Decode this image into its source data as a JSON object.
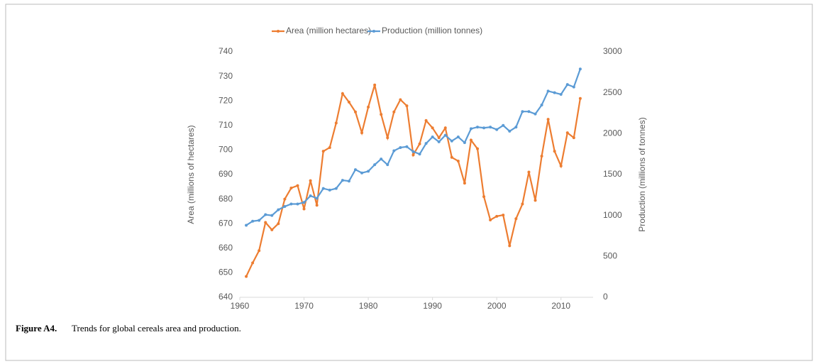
{
  "chart_data": {
    "type": "line",
    "x": [
      1961,
      1962,
      1963,
      1964,
      1965,
      1966,
      1967,
      1968,
      1969,
      1970,
      1971,
      1972,
      1973,
      1974,
      1975,
      1976,
      1977,
      1978,
      1979,
      1980,
      1981,
      1982,
      1983,
      1984,
      1985,
      1986,
      1987,
      1988,
      1989,
      1990,
      1991,
      1992,
      1993,
      1994,
      1995,
      1996,
      1997,
      1998,
      1999,
      2000,
      2001,
      2002,
      2003,
      2004,
      2005,
      2006,
      2007,
      2008,
      2009,
      2010,
      2011,
      2012,
      2013
    ],
    "series": [
      {
        "name": "Area (million hectares)",
        "color": "#ED7D31",
        "axis": "y",
        "values": [
          648.5,
          654,
          659,
          670.5,
          667.5,
          670,
          680,
          684.5,
          685.5,
          676,
          687.5,
          677.5,
          699.5,
          701,
          711,
          723,
          719.5,
          715.5,
          707,
          717.5,
          726.5,
          714.5,
          705,
          715.5,
          720.5,
          718,
          698,
          702.5,
          712,
          709,
          705,
          709,
          697,
          695.5,
          686.5,
          704,
          700.5,
          681,
          671.5,
          673,
          673.5,
          661,
          672,
          678,
          691,
          679.5,
          697.5,
          712.5,
          699.5,
          693.5,
          707,
          705,
          721
        ]
      },
      {
        "name": "Production (million tonnes)",
        "color": "#5B9BD5",
        "axis": "y2",
        "values": [
          880,
          930,
          940,
          1010,
          1000,
          1070,
          1110,
          1140,
          1140,
          1160,
          1240,
          1210,
          1330,
          1310,
          1330,
          1430,
          1420,
          1560,
          1520,
          1540,
          1620,
          1690,
          1620,
          1790,
          1830,
          1840,
          1780,
          1750,
          1880,
          1960,
          1900,
          1980,
          1910,
          1960,
          1890,
          2060,
          2080,
          2070,
          2080,
          2050,
          2100,
          2030,
          2080,
          2270,
          2270,
          2240,
          2350,
          2520,
          2500,
          2480,
          2600,
          2570,
          2790
        ]
      }
    ],
    "xlim": [
      1960,
      2015
    ],
    "xticks": [
      1960,
      1970,
      1980,
      1990,
      2000,
      2010
    ],
    "ylim": [
      640,
      740
    ],
    "yticks": [
      640,
      650,
      660,
      670,
      680,
      690,
      700,
      710,
      720,
      730,
      740
    ],
    "y2lim": [
      0,
      3000
    ],
    "y2ticks": [
      0,
      500,
      1000,
      1500,
      2000,
      2500,
      3000
    ],
    "ylabel": "Area (millions of hectares)",
    "y2label": "Production (millions of tonnes)",
    "legend": "top"
  },
  "figure_caption": {
    "label": "Figure A4.",
    "text": "Trends for global cereals area and production."
  }
}
